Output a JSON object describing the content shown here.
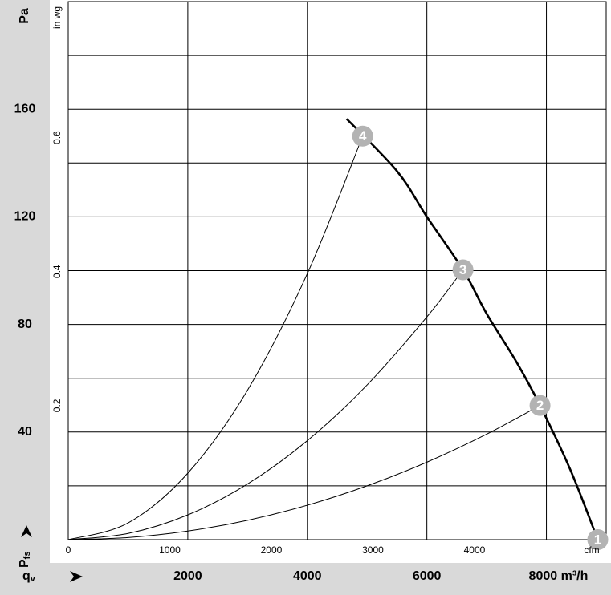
{
  "chart_data": {
    "type": "line",
    "y_unit": "Pa",
    "y2_unit": "in wg",
    "x2_unit": "cfm",
    "x_label": "q",
    "x_label_sub": "v",
    "y_label": "P",
    "y_label_sub": "fs",
    "xlim": [
      0,
      9000
    ],
    "ylim": [
      0,
      200
    ],
    "xticks": [
      2000,
      4000,
      6000,
      {
        "value": 8000,
        "label": "8000 m³/h"
      }
    ],
    "yticks": [
      40,
      80,
      120,
      160
    ],
    "minor_yticks": [
      20,
      60,
      100,
      140,
      180
    ],
    "x2lim": [
      0,
      5297
    ],
    "x2ticks": [
      0,
      1000,
      2000,
      3000,
      4000
    ],
    "y2lim": [
      0,
      0.803
    ],
    "y2ticks": [
      0.2,
      0.4,
      0.6
    ],
    "grid": true,
    "series": [
      {
        "color": "#000000",
        "line_width": 2.6,
        "x": [
          4658,
          5500,
          6000,
          6604,
          7000,
          7500,
          7893,
          8400,
          8859
        ],
        "values": [
          156.4,
          137,
          120,
          100.3,
          84,
          66,
          49.9,
          26,
          0
        ]
      },
      {
        "color": "#000000",
        "line_width": 1,
        "x": [
          0,
          1000,
          2000,
          3000,
          4000,
          5000,
          6000,
          7000,
          7893
        ],
        "values": [
          0,
          0.8,
          3.2,
          7.2,
          12.8,
          20.0,
          28.8,
          39.2,
          49.9
        ]
      },
      {
        "color": "#000000",
        "line_width": 1,
        "x": [
          0,
          1000,
          2000,
          3000,
          4000,
          5000,
          6000,
          6604
        ],
        "values": [
          0,
          2.3,
          9.2,
          20.7,
          36.8,
          57.5,
          82.8,
          100.3
        ]
      },
      {
        "color": "#000000",
        "line_width": 1,
        "x": [
          0,
          1000,
          2000,
          3000,
          4000,
          4926
        ],
        "values": [
          0,
          6.2,
          24.7,
          55.6,
          98.9,
          150
        ]
      }
    ],
    "points": {
      "color": "#b3b3b3",
      "x": [
        8859,
        7893,
        6604,
        4926
      ],
      "values": [
        0,
        49.9,
        100.3,
        150
      ],
      "labels": [
        "1",
        "2",
        "3",
        "4"
      ]
    }
  }
}
